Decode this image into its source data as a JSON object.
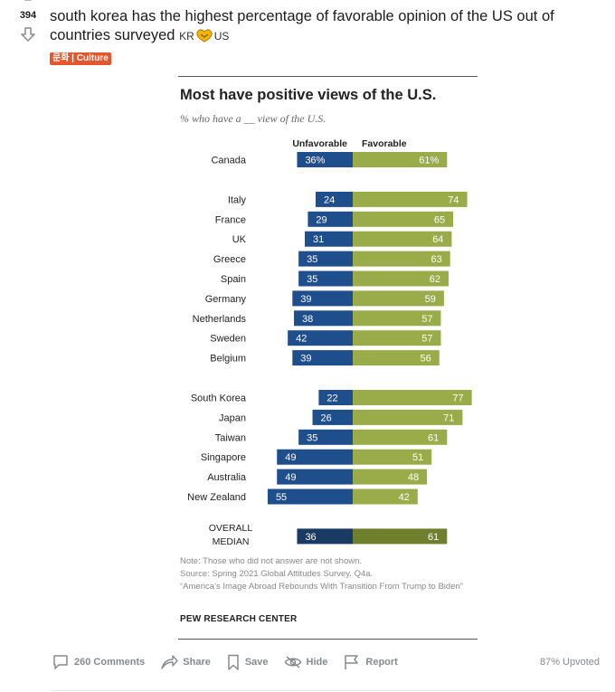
{
  "post": {
    "score": "394",
    "title": "south korea has the highest percentage of favorable opinion of the US out of countries surveyed",
    "title_tail_1": "KR",
    "title_tail_2": "US",
    "flair": "문화 | Culture"
  },
  "chart_data": {
    "type": "bar",
    "title": "Most have positive views of the U.S.",
    "subtitle": "% who have a __ view of the U.S.",
    "legend": [
      "Unfavorable",
      "Favorable"
    ],
    "series": [
      {
        "name": "Unfavorable",
        "color": "#1f4e8c"
      },
      {
        "name": "Favorable",
        "color": "#9aab4a"
      }
    ],
    "categories": [
      "Canada",
      "Italy",
      "France",
      "UK",
      "Greece",
      "Spain",
      "Germany",
      "Netherlands",
      "Sweden",
      "Belgium",
      "South Korea",
      "Japan",
      "Taiwan",
      "Singapore",
      "Australia",
      "New Zealand",
      "OVERALL MEDIAN"
    ],
    "rows": [
      {
        "label": "Canada",
        "unfavorable": "36%",
        "favorable": "61%",
        "u": 36,
        "f": 61,
        "group": 0
      },
      {
        "label": "Italy",
        "unfavorable": "24",
        "favorable": "74",
        "u": 24,
        "f": 74,
        "group": 1
      },
      {
        "label": "France",
        "unfavorable": "29",
        "favorable": "65",
        "u": 29,
        "f": 65,
        "group": 1
      },
      {
        "label": "UK",
        "unfavorable": "31",
        "favorable": "64",
        "u": 31,
        "f": 64,
        "group": 1
      },
      {
        "label": "Greece",
        "unfavorable": "35",
        "favorable": "63",
        "u": 35,
        "f": 63,
        "group": 1
      },
      {
        "label": "Spain",
        "unfavorable": "35",
        "favorable": "62",
        "u": 35,
        "f": 62,
        "group": 1
      },
      {
        "label": "Germany",
        "unfavorable": "39",
        "favorable": "59",
        "u": 39,
        "f": 59,
        "group": 1
      },
      {
        "label": "Netherlands",
        "unfavorable": "38",
        "favorable": "57",
        "u": 38,
        "f": 57,
        "group": 1
      },
      {
        "label": "Sweden",
        "unfavorable": "42",
        "favorable": "57",
        "u": 42,
        "f": 57,
        "group": 1
      },
      {
        "label": "Belgium",
        "unfavorable": "39",
        "favorable": "56",
        "u": 39,
        "f": 56,
        "group": 1
      },
      {
        "label": "South Korea",
        "unfavorable": "22",
        "favorable": "77",
        "u": 22,
        "f": 77,
        "group": 2
      },
      {
        "label": "Japan",
        "unfavorable": "26",
        "favorable": "71",
        "u": 26,
        "f": 71,
        "group": 2
      },
      {
        "label": "Taiwan",
        "unfavorable": "35",
        "favorable": "61",
        "u": 35,
        "f": 61,
        "group": 2
      },
      {
        "label": "Singapore",
        "unfavorable": "49",
        "favorable": "51",
        "u": 49,
        "f": 51,
        "group": 2
      },
      {
        "label": "Australia",
        "unfavorable": "49",
        "favorable": "48",
        "u": 49,
        "f": 48,
        "group": 2
      },
      {
        "label": "New Zealand",
        "unfavorable": "55",
        "favorable": "42",
        "u": 55,
        "f": 42,
        "group": 2
      },
      {
        "label": "OVERALL MEDIAN",
        "label_line1": "OVERALL",
        "label_line2": "MEDIAN",
        "unfavorable": "36",
        "favorable": "61",
        "u": 36,
        "f": 61,
        "group": 3
      }
    ],
    "median_colors": {
      "unfavorable": "#183a63",
      "favorable": "#6f7f2e"
    },
    "notes": [
      "Note: Those who did not answer are not shown.",
      "Source: Spring 2021 Global Attitudes Survey. Q4a.",
      "“America’s Image Abroad Rebounds With Transition From Trump to Biden”"
    ],
    "source": "PEW RESEARCH CENTER"
  },
  "actions": {
    "comments": "260 Comments",
    "share": "Share",
    "save": "Save",
    "hide": "Hide",
    "report": "Report",
    "upvoted": "87% Upvoted"
  },
  "icons": [
    "upvote-icon",
    "downvote-icon",
    "comment-icon",
    "share-icon",
    "save-icon",
    "hide-icon",
    "report-icon"
  ]
}
